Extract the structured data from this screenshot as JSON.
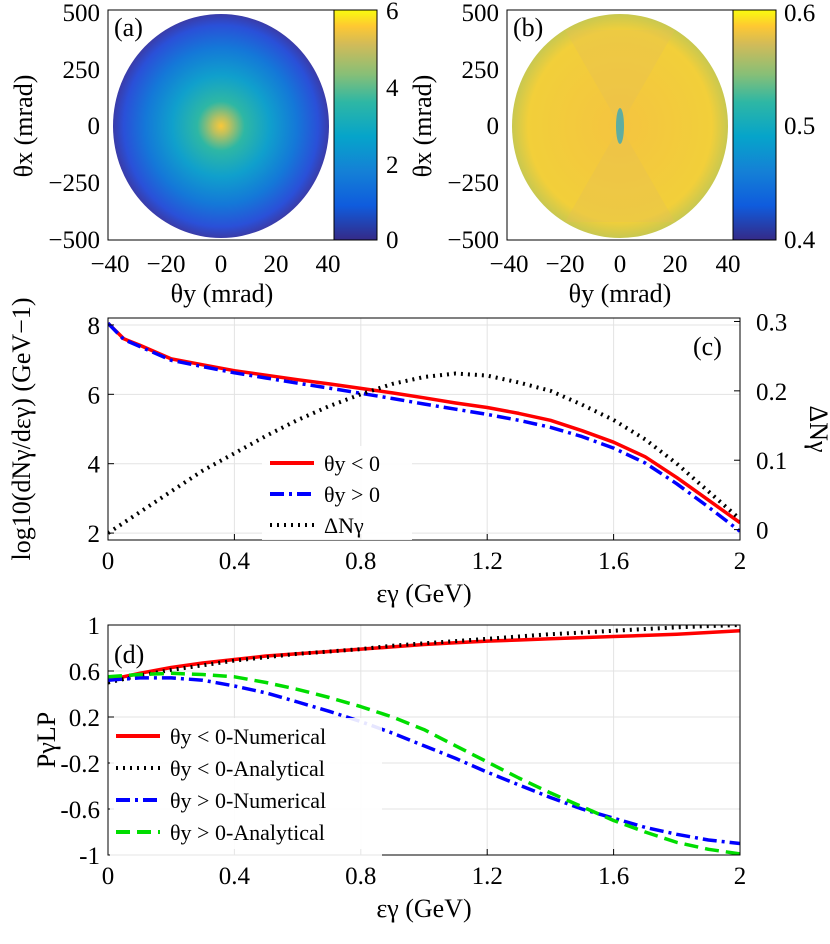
{
  "panels": {
    "a": {
      "label": "(a)",
      "xlabel": "θy (mrad)",
      "ylabel": "θx (mrad)",
      "xticks": [
        "−40",
        "−20",
        "0",
        "20",
        "40"
      ],
      "yticks": [
        "500",
        "250",
        "0",
        "−250",
        "−500"
      ],
      "colorbar_ticks": [
        "6",
        "4",
        "2",
        "0"
      ],
      "colorbar_range": [
        0,
        6
      ]
    },
    "b": {
      "label": "(b)",
      "xlabel": "θy (mrad)",
      "ylabel": "θx (mrad)",
      "xticks": [
        "−40",
        "−20",
        "0",
        "20",
        "40"
      ],
      "yticks": [
        "500",
        "250",
        "0",
        "−250",
        "−500"
      ],
      "colorbar_ticks": [
        "0.6",
        "0.5",
        "0.4"
      ],
      "colorbar_range": [
        0.4,
        0.6
      ]
    }
  },
  "chart_data": [
    {
      "id": "c",
      "type": "line",
      "label": "(c)",
      "xlabel": "εγ (GeV)",
      "ylabel": "log10(dNγ/dεγ) (GeV−1)",
      "y2label": "ΔNγ",
      "xlim": [
        0,
        2
      ],
      "ylim": [
        1.8,
        8.2
      ],
      "y2lim": [
        -0.015,
        0.305
      ],
      "xticks": [
        0,
        0.4,
        0.8,
        1.2,
        1.6,
        2
      ],
      "yticks": [
        2,
        4,
        6,
        8
      ],
      "y2ticks": [
        0,
        0.1,
        0.2,
        0.3
      ],
      "xticklabels": [
        "0",
        "0.4",
        "0.8",
        "1.2",
        "1.6",
        "2"
      ],
      "yticklabels": [
        "2",
        "4",
        "6",
        "8"
      ],
      "y2ticklabels": [
        "0",
        "0.1",
        "0.2",
        "0.3"
      ],
      "x": [
        0,
        0.05,
        0.1,
        0.2,
        0.3,
        0.4,
        0.5,
        0.6,
        0.7,
        0.8,
        0.9,
        1.0,
        1.1,
        1.2,
        1.3,
        1.4,
        1.5,
        1.6,
        1.7,
        1.8,
        1.9,
        2.0
      ],
      "series": [
        {
          "name": "θy < 0",
          "axis": "left",
          "color": "#ff0000",
          "dash": "solid",
          "values": [
            8.05,
            7.6,
            7.42,
            7.02,
            6.85,
            6.68,
            6.55,
            6.42,
            6.3,
            6.17,
            6.04,
            5.9,
            5.75,
            5.62,
            5.45,
            5.25,
            4.95,
            4.62,
            4.2,
            3.6,
            2.95,
            2.3
          ]
        },
        {
          "name": "θy > 0",
          "axis": "left",
          "color": "#0000ff",
          "dash": "dashdot",
          "values": [
            8.05,
            7.58,
            7.38,
            6.98,
            6.8,
            6.62,
            6.47,
            6.32,
            6.18,
            6.03,
            5.88,
            5.72,
            5.57,
            5.42,
            5.25,
            5.05,
            4.78,
            4.45,
            4.02,
            3.42,
            2.75,
            2.05
          ]
        },
        {
          "name": "ΔNγ",
          "axis": "right",
          "color": "#000000",
          "dash": "dotted",
          "values": [
            -0.005,
            0.01,
            0.025,
            0.055,
            0.085,
            0.11,
            0.135,
            0.158,
            0.178,
            0.195,
            0.21,
            0.22,
            0.225,
            0.222,
            0.212,
            0.2,
            0.18,
            0.158,
            0.13,
            0.095,
            0.055,
            0.015
          ]
        }
      ]
    },
    {
      "id": "d",
      "type": "line",
      "label": "(d)",
      "xlabel": "εγ (GeV)",
      "ylabel": "PγLP",
      "xlim": [
        0,
        2
      ],
      "ylim": [
        -1,
        1
      ],
      "xticks": [
        0,
        0.4,
        0.8,
        1.2,
        1.6,
        2
      ],
      "yticks": [
        1,
        0.6,
        0.2,
        -0.2,
        -0.6,
        -1
      ],
      "xticklabels": [
        "0",
        "0.4",
        "0.8",
        "1.2",
        "1.6",
        "2"
      ],
      "yticklabels": [
        "1",
        "0.6",
        "0.2",
        "-0.2",
        "-0.6",
        "-1"
      ],
      "x": [
        0,
        0.1,
        0.2,
        0.3,
        0.4,
        0.5,
        0.6,
        0.7,
        0.8,
        0.9,
        1.0,
        1.1,
        1.2,
        1.3,
        1.4,
        1.5,
        1.6,
        1.7,
        1.8,
        1.9,
        2.0
      ],
      "series": [
        {
          "name": "θy < 0-Numerical",
          "color": "#ff0000",
          "dash": "solid",
          "values": [
            0.52,
            0.58,
            0.63,
            0.67,
            0.7,
            0.73,
            0.75,
            0.77,
            0.79,
            0.81,
            0.83,
            0.845,
            0.86,
            0.87,
            0.88,
            0.89,
            0.9,
            0.91,
            0.92,
            0.935,
            0.95
          ]
        },
        {
          "name": "θy < 0-Analytical",
          "color": "#000000",
          "dash": "dotted",
          "values": [
            0.5,
            0.56,
            0.61,
            0.65,
            0.69,
            0.72,
            0.75,
            0.77,
            0.79,
            0.82,
            0.84,
            0.86,
            0.88,
            0.9,
            0.92,
            0.935,
            0.95,
            0.965,
            0.98,
            0.99,
            1.0
          ]
        },
        {
          "name": "θy > 0-Numerical",
          "color": "#0000ff",
          "dash": "dashdot",
          "values": [
            0.52,
            0.54,
            0.54,
            0.52,
            0.47,
            0.41,
            0.33,
            0.25,
            0.16,
            0.06,
            -0.05,
            -0.16,
            -0.28,
            -0.39,
            -0.5,
            -0.6,
            -0.68,
            -0.76,
            -0.82,
            -0.87,
            -0.9
          ]
        },
        {
          "name": "θy > 0-Analytical",
          "color": "#00dd00",
          "dash": "dashed",
          "values": [
            0.55,
            0.57,
            0.58,
            0.57,
            0.55,
            0.5,
            0.44,
            0.37,
            0.29,
            0.2,
            0.09,
            -0.05,
            -0.19,
            -0.33,
            -0.46,
            -0.58,
            -0.7,
            -0.8,
            -0.89,
            -0.95,
            -0.99
          ]
        }
      ]
    }
  ]
}
